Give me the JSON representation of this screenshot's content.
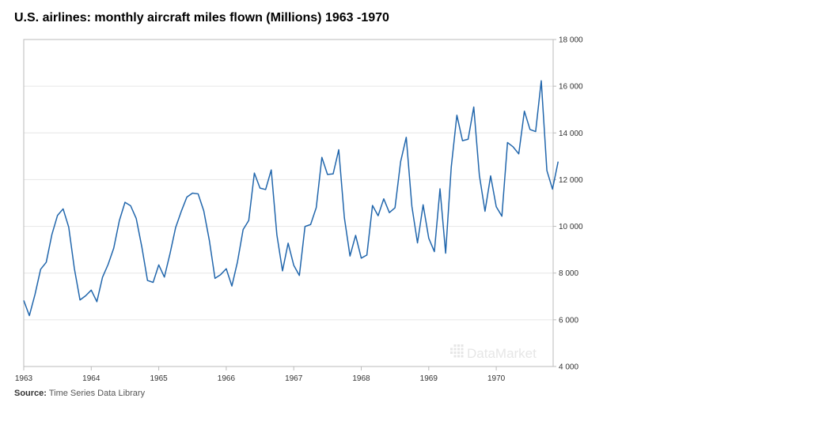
{
  "title": "U.S. airlines: monthly aircraft miles flown (Millions) 1963 -1970",
  "source": {
    "label": "Source:",
    "text": "Time Series Data Library"
  },
  "watermark": "DataMarket",
  "colors": {
    "line": "#2166ac",
    "grid": "#e6e6e6",
    "frame": "#bbbbbb"
  },
  "chart_data": {
    "type": "line",
    "title": "U.S. airlines: monthly aircraft miles flown (Millions) 1963 -1970",
    "xlabel": "",
    "ylabel": "",
    "x_tick_labels": [
      "1963",
      "1964",
      "1965",
      "1966",
      "1967",
      "1968",
      "1969",
      "1970"
    ],
    "y_tick_labels": [
      "4 000",
      "6 000",
      "8 000",
      "10 000",
      "12 000",
      "14 000",
      "16 000",
      "18 000"
    ],
    "ylim": [
      4000,
      18000
    ],
    "x_start": "1963-01",
    "frequency": "monthly",
    "y_axis_position": "right",
    "grid": true,
    "legend": "none",
    "series": [
      {
        "values": [
          6827,
          6178,
          7084,
          8162,
          8462,
          9644,
          10466,
          10748,
          9963,
          8194,
          6848,
          7027,
          7269,
          6775,
          7819,
          8371,
          9069,
          10248,
          11030,
          10882,
          10333,
          9109,
          7685,
          7602,
          8350,
          7829,
          8829,
          9948,
          10638,
          11253,
          11424,
          11391,
          10665,
          9396,
          7775,
          7933,
          8186,
          7444,
          8484,
          9864,
          10252,
          12282,
          11637,
          11577,
          12417,
          9637,
          8094,
          9280,
          8334,
          7899,
          9994,
          10078,
          10801,
          12953,
          12222,
          12246,
          13281,
          10366,
          8730,
          9614,
          8639,
          8772,
          10894,
          10455,
          11179,
          10588,
          10794,
          12770,
          13812,
          10857,
          9290,
          10925,
          9491,
          8919,
          11607,
          8852,
          12537,
          14759,
          13667,
          13731,
          15110,
          12185,
          10645,
          12161,
          10840,
          10436,
          13589,
          13402,
          13103,
          14933,
          14147,
          14057,
          16234,
          12389,
          11594,
          12772
        ]
      }
    ]
  }
}
